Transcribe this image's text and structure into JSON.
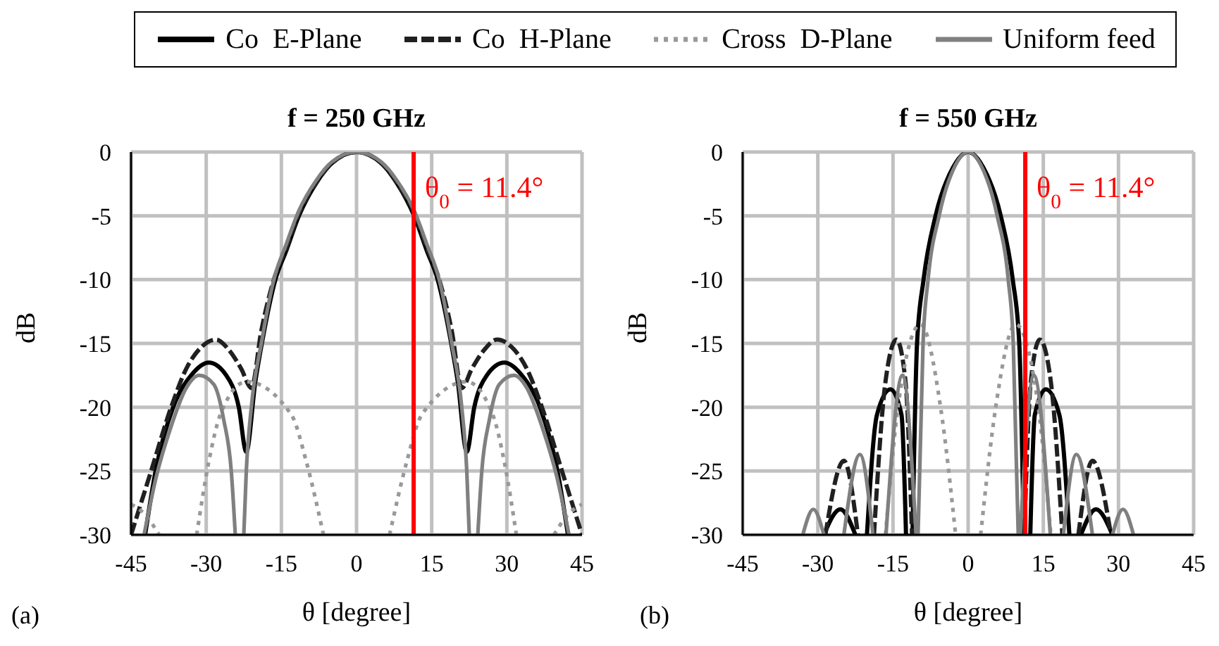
{
  "chart_data": [
    {
      "type": "line",
      "title": "f = 250 GHz",
      "xlabel": "θ  [degree]",
      "ylabel": "dB",
      "xlim": [
        -45,
        45
      ],
      "xticks": [
        -45,
        -30,
        -15,
        0,
        15,
        30,
        45
      ],
      "ylim": [
        -30,
        0
      ],
      "yticks": [
        -30,
        -25,
        -20,
        -15,
        -10,
        -5,
        0
      ],
      "grid": true,
      "legend": "top",
      "annotations": [
        "(a)"
      ],
      "ref_lines": [
        {
          "axis": "x",
          "value": 11.4,
          "label": "θ$_{0}$ = 11.4°",
          "color": "#ff0000"
        }
      ],
      "series": [
        {
          "name": "Co  E-Plane",
          "color": "#000000",
          "line_style": "solid",
          "x": [
            -42.2,
            -40.1,
            -36.6,
            -33,
            -29.5,
            -26,
            -23.5,
            -22,
            -20.2,
            -18.9,
            -16.2,
            -14,
            -11.5,
            -8,
            -5,
            0,
            5,
            8,
            11.5,
            14,
            16.2,
            18.9,
            20.2,
            22,
            23.5,
            26,
            29.5,
            33,
            36.6,
            40.1,
            42.2
          ],
          "values": [
            -30,
            -25,
            -20,
            -17.5,
            -16.5,
            -17.5,
            -20,
            -23.5,
            -18,
            -15,
            -10,
            -7.7,
            -5,
            -2.4,
            -0.9,
            0,
            -0.9,
            -2.4,
            -5,
            -7.7,
            -10,
            -15,
            -18,
            -23.5,
            -20,
            -17.5,
            -16.5,
            -17.5,
            -20,
            -25,
            -30
          ]
        },
        {
          "name": "Co  H-Plane",
          "color": "#202020",
          "line_style": "dashed",
          "x": [
            -45,
            -41,
            -37,
            -34,
            -31,
            -28,
            -25.5,
            -23,
            -21,
            -19,
            -16.5,
            -14,
            -11.5,
            -8,
            -5,
            0,
            5,
            8,
            11.5,
            14,
            16.5,
            19,
            21,
            23,
            25.5,
            28,
            31,
            34,
            37,
            41,
            45
          ],
          "values": [
            -30,
            -25,
            -20,
            -17,
            -15.3,
            -14.7,
            -15.5,
            -17,
            -18.5,
            -14,
            -10,
            -7.5,
            -4.8,
            -2.4,
            -0.9,
            0,
            -0.9,
            -2.4,
            -4.8,
            -7.5,
            -10,
            -14,
            -18.5,
            -17,
            -15.5,
            -14.7,
            -15.3,
            -17,
            -20,
            -25,
            -30
          ]
        },
        {
          "name": "Cross  D-Plane",
          "color": "#999999",
          "line_style": "dotted",
          "x": [
            -45,
            -42,
            -39.4,
            -35.5,
            -31.9,
            -29.5,
            -27.2,
            -22,
            -13,
            -10,
            -6.6,
            0,
            6.6,
            10,
            13,
            22,
            27.2,
            29.5,
            31.9,
            35.5,
            39.4,
            42,
            45
          ],
          "values": [
            -27.6,
            -28.5,
            -30,
            null,
            -30,
            -24.3,
            -20.6,
            -18,
            -20.6,
            -24.3,
            -30,
            null,
            -30,
            -24.3,
            -20.6,
            -18,
            -20.6,
            -24.3,
            -30,
            null,
            -30,
            -28.5,
            -27.6
          ]
        },
        {
          "name": "Uniform feed",
          "color": "#808080",
          "line_style": "solid",
          "x": [
            -42.4,
            -40,
            -37,
            -34,
            -31.4,
            -28.5,
            -26.5,
            -25,
            -24.2,
            -23.3,
            -22.5,
            -22,
            -21,
            -19,
            -16.5,
            -14,
            -11.5,
            -8,
            -5,
            0,
            5,
            8,
            11.5,
            14,
            16.5,
            19,
            21,
            22,
            22.5,
            23.3,
            24.2,
            25,
            26.5,
            28.5,
            31.4,
            34,
            37,
            40,
            42.4
          ],
          "values": [
            -30,
            -25.5,
            -21.5,
            -18.5,
            -17.5,
            -18.2,
            -21,
            -25,
            -30,
            null,
            -30,
            -25,
            -20,
            -15,
            -10,
            -7.2,
            -4.6,
            -2.2,
            -0.8,
            0,
            -0.8,
            -2.2,
            -4.6,
            -7.2,
            -10,
            -15,
            -20,
            -25,
            -30,
            null,
            -30,
            -25,
            -21,
            -18.2,
            -17.5,
            -18.5,
            -21.5,
            -25.5,
            -30
          ]
        }
      ]
    },
    {
      "type": "line",
      "title": "f = 550 GHz",
      "xlabel": "θ  [degree]",
      "ylabel": "dB",
      "xlim": [
        -45,
        45
      ],
      "xticks": [
        -45,
        -30,
        -15,
        0,
        15,
        30,
        45
      ],
      "ylim": [
        -30,
        0
      ],
      "yticks": [
        -30,
        -25,
        -20,
        -15,
        -10,
        -5,
        0
      ],
      "grid": true,
      "annotations": [
        "(b)"
      ],
      "ref_lines": [
        {
          "axis": "x",
          "value": 11.4,
          "label": "θ$_{0}$ = 11.4°",
          "color": "#ff0000"
        }
      ],
      "series": [
        {
          "color": "#000000",
          "line_style": "solid",
          "x": [
            -28.8,
            -25.5,
            -22.5,
            -21.3,
            -20.2,
            -18.2,
            -15.5,
            -13.3,
            -12.4,
            -11.8,
            -11.1,
            -10.2,
            -8.9,
            -6.5,
            -3,
            0,
            3,
            6.5,
            8.9,
            10.2,
            11.1,
            11.8,
            12.4,
            13.3,
            15.5,
            18.2,
            20.2,
            21.3,
            22.5,
            25.5,
            28.8
          ],
          "values": [
            -30,
            -28,
            -30,
            null,
            -30,
            -20.6,
            -18.6,
            -20.6,
            -30,
            null,
            -30,
            -15,
            -10,
            -5,
            -1.2,
            0,
            -1.2,
            -5,
            -10,
            -15,
            -30,
            null,
            -30,
            -20.6,
            -18.6,
            -20.6,
            -30,
            null,
            -30,
            -28,
            -30
          ]
        },
        {
          "color": "#202020",
          "line_style": "dashed",
          "x": [
            -28.5,
            -24.8,
            -22,
            -20.4,
            -18.8,
            -16.5,
            -14.3,
            -12.5,
            -11.2,
            0,
            11.2,
            12.5,
            14.3,
            16.5,
            18.8,
            20.4,
            22,
            24.8,
            28.5
          ],
          "values": [
            -30,
            -24.2,
            -30,
            null,
            -30,
            -18,
            -14.7,
            -18,
            -30,
            null,
            -30,
            -18,
            -14.7,
            -18,
            -30,
            null,
            -30,
            -24.2,
            -30
          ]
        },
        {
          "color": "#999999",
          "line_style": "dotted",
          "x": [
            -16.5,
            -14,
            -9.5,
            -5.5,
            -2.5,
            0,
            2.5,
            5.5,
            9.5,
            14,
            16.5
          ],
          "values": [
            -30,
            -20,
            -13.5,
            -20,
            -30,
            null,
            -30,
            -20,
            -13.5,
            -20,
            -30
          ]
        },
        {
          "color": "#808080",
          "line_style": "solid",
          "x": [
            -33,
            -30.9,
            -28.8,
            -26.9,
            -24.8,
            -21.6,
            -19,
            -17.7,
            -16.4,
            -13.1,
            -10.4,
            -10.2,
            -10,
            -9,
            -8,
            -5.8,
            -2.5,
            0,
            2.5,
            5.8,
            8,
            9,
            10,
            10.2,
            10.4,
            13.1,
            16.4,
            17.7,
            19,
            21.6,
            24.8,
            26.9,
            28.8,
            30.9,
            33
          ],
          "values": [
            -30,
            -28,
            -30,
            null,
            -30,
            -23.7,
            -30,
            null,
            -30,
            -17.5,
            -30,
            null,
            -30,
            -15,
            -10,
            -5,
            -1,
            0,
            -1,
            -5,
            -10,
            -15,
            -30,
            null,
            -30,
            -17.5,
            -30,
            null,
            -30,
            -23.7,
            -30,
            null,
            -30,
            -28,
            -30
          ]
        }
      ]
    }
  ]
}
